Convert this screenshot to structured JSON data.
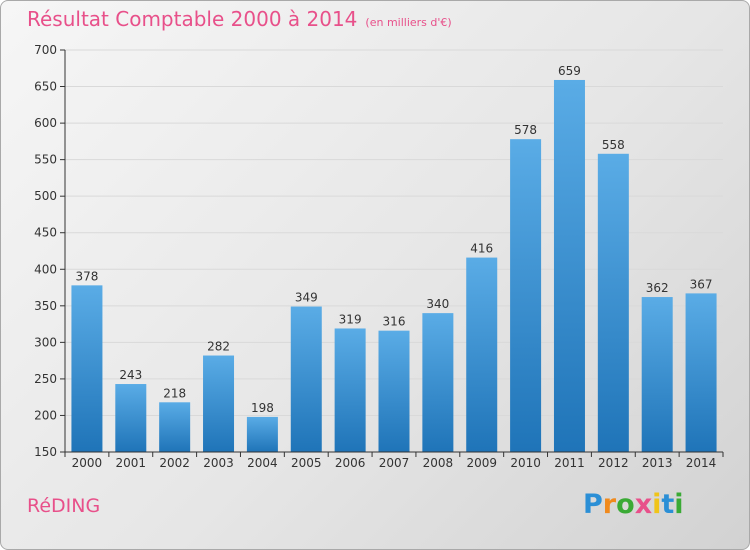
{
  "header": {
    "title": "Résultat Comptable 2000 à 2014",
    "subtitle": "(en milliers d'€)"
  },
  "footer": {
    "place": "RéDING",
    "logo": {
      "text": "Proxiti",
      "letters": [
        {
          "char": "P",
          "color": "#2b8fd6"
        },
        {
          "char": "r",
          "color": "#f08a1d"
        },
        {
          "char": "o",
          "color": "#3aaa35"
        },
        {
          "char": "x",
          "color": "#e8508a"
        },
        {
          "char": "i",
          "color": "#f0c419"
        },
        {
          "char": "t",
          "color": "#2b8fd6"
        },
        {
          "char": "i",
          "color": "#3aaa35"
        }
      ]
    }
  },
  "colors": {
    "accent": "#e8508a",
    "bar_top": "#5aace6",
    "bar_bottom": "#1f74b8",
    "axis": "#333333",
    "grid": "#d9d9d9"
  },
  "chart_data": {
    "type": "bar",
    "title": "Résultat Comptable 2000 à 2014",
    "subtitle": "(en milliers d'€)",
    "categories": [
      "2000",
      "2001",
      "2002",
      "2003",
      "2004",
      "2005",
      "2006",
      "2007",
      "2008",
      "2009",
      "2010",
      "2011",
      "2012",
      "2013",
      "2014"
    ],
    "values": [
      378,
      243,
      218,
      282,
      198,
      349,
      319,
      316,
      340,
      416,
      578,
      659,
      558,
      362,
      367
    ],
    "ylim": [
      150,
      700
    ],
    "yticks": [
      150,
      200,
      250,
      300,
      350,
      400,
      450,
      500,
      550,
      600,
      650,
      700
    ],
    "grid": true,
    "data_labels": true,
    "legend": "none"
  }
}
